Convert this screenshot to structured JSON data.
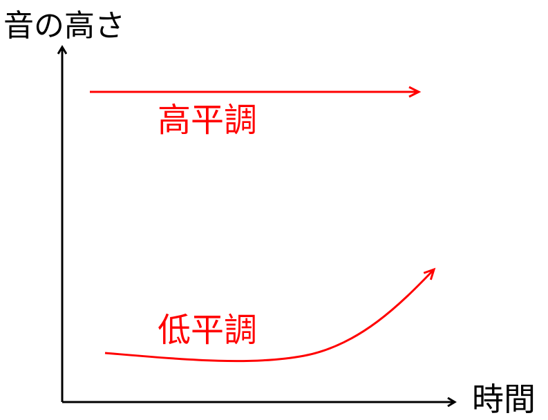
{
  "axes": {
    "y_label": "音の高さ",
    "x_label": "時間"
  },
  "tones": [
    {
      "label": "高平調",
      "shape": "level-high"
    },
    {
      "label": "低平調",
      "shape": "low-then-rising"
    }
  ],
  "colors": {
    "axis": "#000000",
    "tone": "#ff0000"
  }
}
